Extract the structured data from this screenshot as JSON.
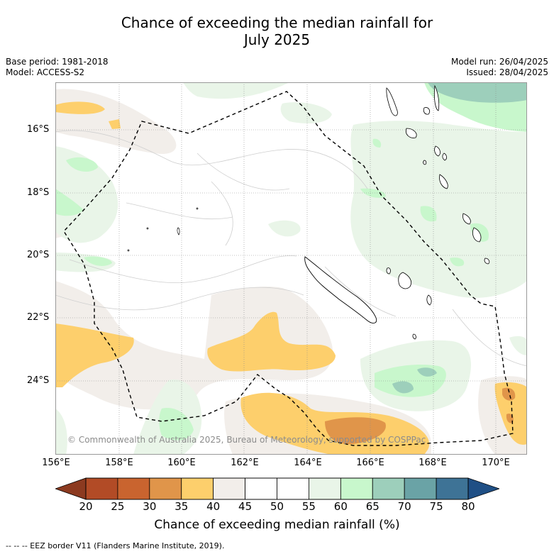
{
  "title_line1": "Chance of exceeding the median rainfall for",
  "title_line2": "July 2025",
  "base_period": "Base period: 1981-2018",
  "model": "Model: ACCESS-S2",
  "model_run": "Model run: 26/04/2025",
  "issued": "Issued: 28/04/2025",
  "lat_labels": [
    "16°S",
    "18°S",
    "20°S",
    "22°S",
    "24°S"
  ],
  "lon_labels": [
    "156°E",
    "158°E",
    "160°E",
    "162°E",
    "164°E",
    "166°E",
    "168°E",
    "170°E"
  ],
  "copyright": "© Commonwealth of Australia 2025, Bureau of Meteorology, supported by COSPPac",
  "colorbar": {
    "label": "Chance of exceeding median rainfall (%)",
    "ticks": [
      "20",
      "25",
      "30",
      "35",
      "40",
      "45",
      "50",
      "55",
      "60",
      "65",
      "70",
      "75",
      "80"
    ],
    "colors": [
      "#b24b26",
      "#c9642f",
      "#e0954a",
      "#fdcf6c",
      "#f2eeea",
      "#ffffff",
      "#ffffff",
      "#e9f5e8",
      "#c8f7cc",
      "#9dcfbb",
      "#6aa3a6",
      "#3e7396"
    ],
    "under_color": "#8c3a20",
    "over_color": "#1f4f85"
  },
  "legend_footnote": "-- -- -- EEZ border V11 (Flanders Marine Institute, 2019)."
}
